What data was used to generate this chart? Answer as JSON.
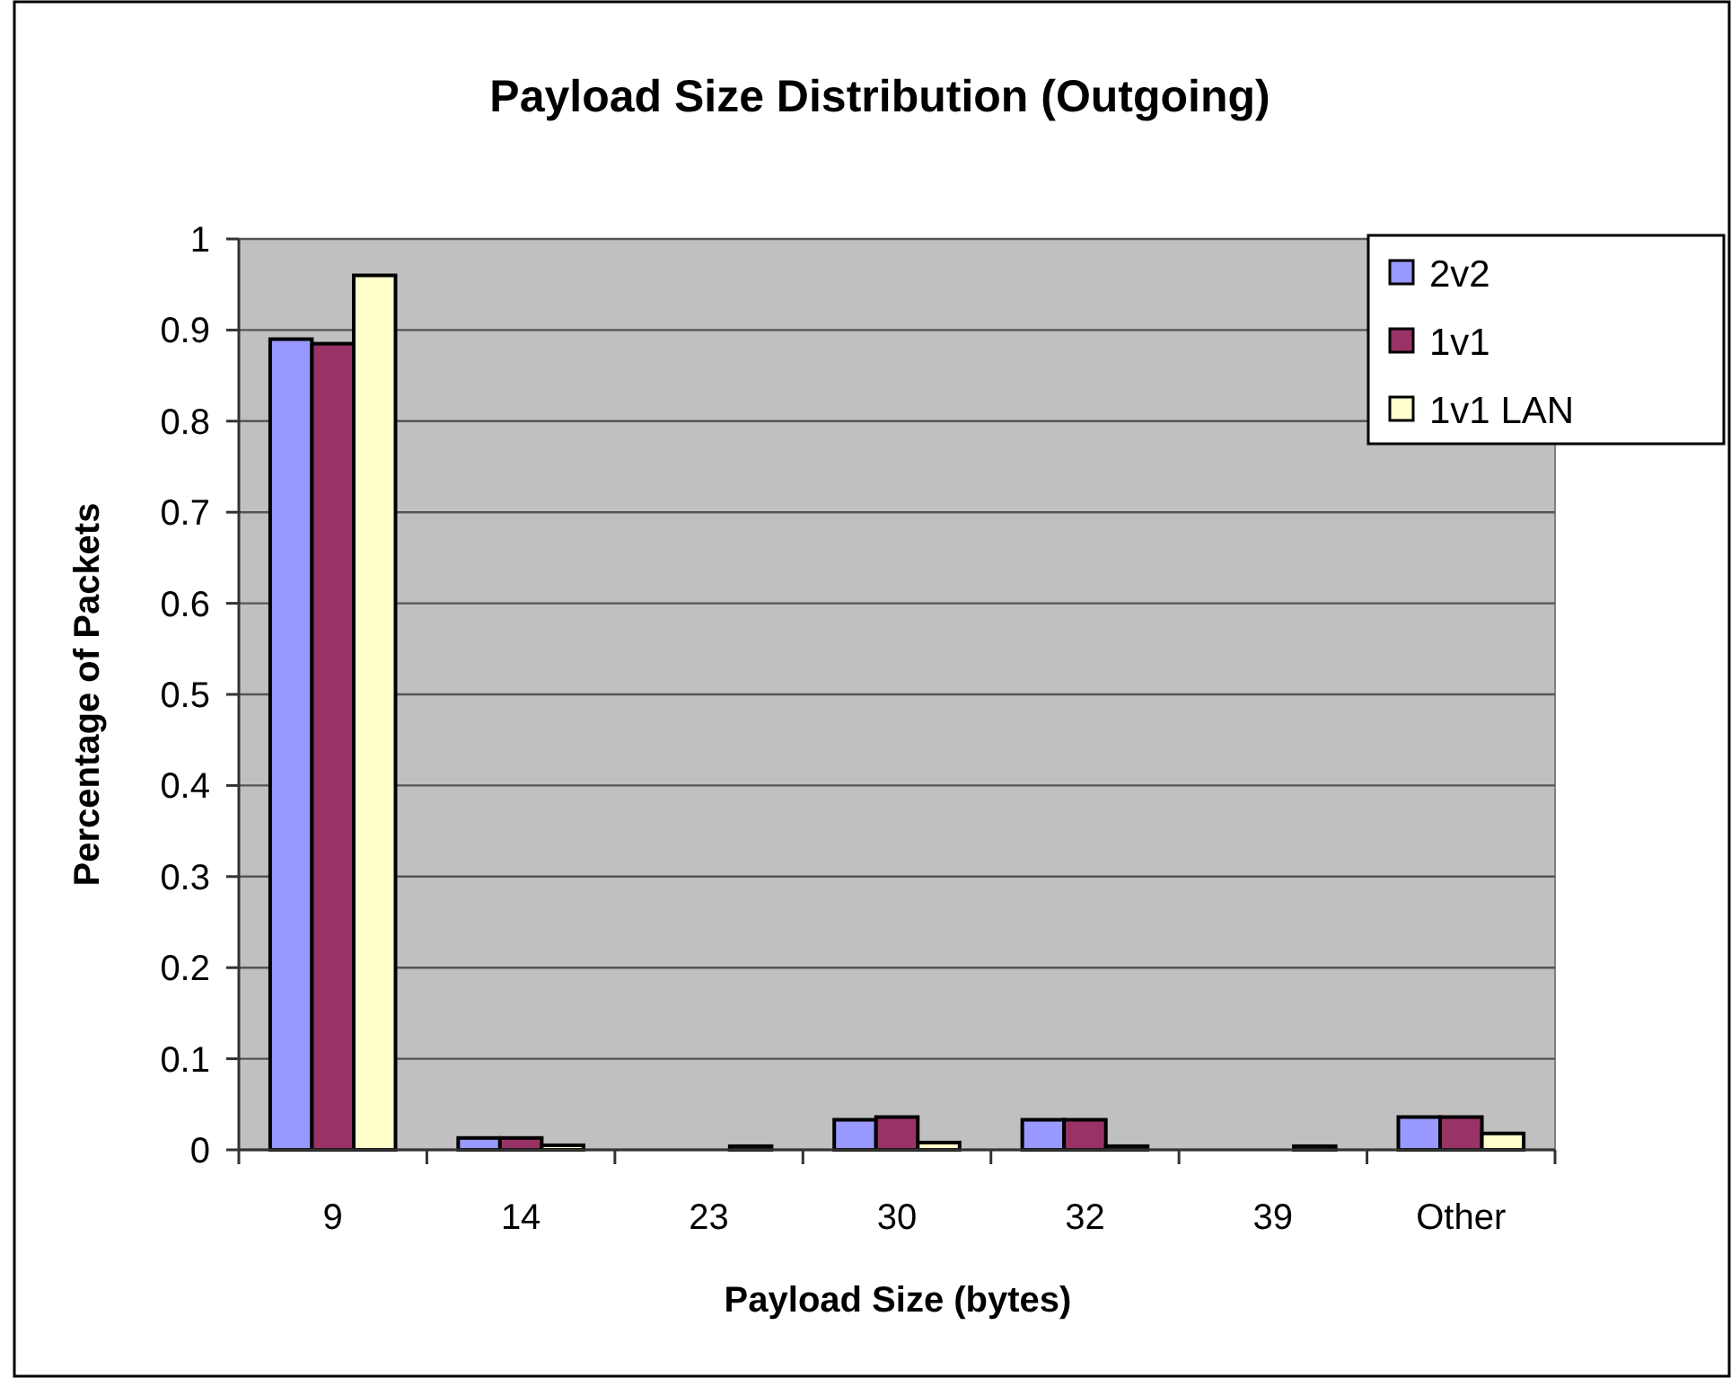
{
  "chart_data": {
    "type": "bar",
    "title": "Payload Size Distribution (Outgoing)",
    "xlabel": "Payload Size (bytes)",
    "ylabel": "Percentage of Packets",
    "categories": [
      "9",
      "14",
      "23",
      "30",
      "32",
      "39",
      "Other"
    ],
    "series": [
      {
        "name": "2v2",
        "color": "#9999ff",
        "values": [
          0.89,
          0.013,
          0,
          0.033,
          0.033,
          0,
          0.036
        ]
      },
      {
        "name": "1v1",
        "color": "#993366",
        "values": [
          0.885,
          0.013,
          0,
          0.036,
          0.033,
          0,
          0.036
        ]
      },
      {
        "name": "1v1 LAN",
        "color": "#ffffcc",
        "values": [
          0.96,
          0.005,
          0.004,
          0.008,
          0.004,
          0.004,
          0.018
        ]
      }
    ],
    "ylim": [
      0,
      1
    ],
    "yticks": [
      0,
      0.1,
      0.2,
      0.3,
      0.4,
      0.5,
      0.6,
      0.7,
      0.8,
      0.9,
      1
    ],
    "grid": "y",
    "legend": "top right"
  }
}
